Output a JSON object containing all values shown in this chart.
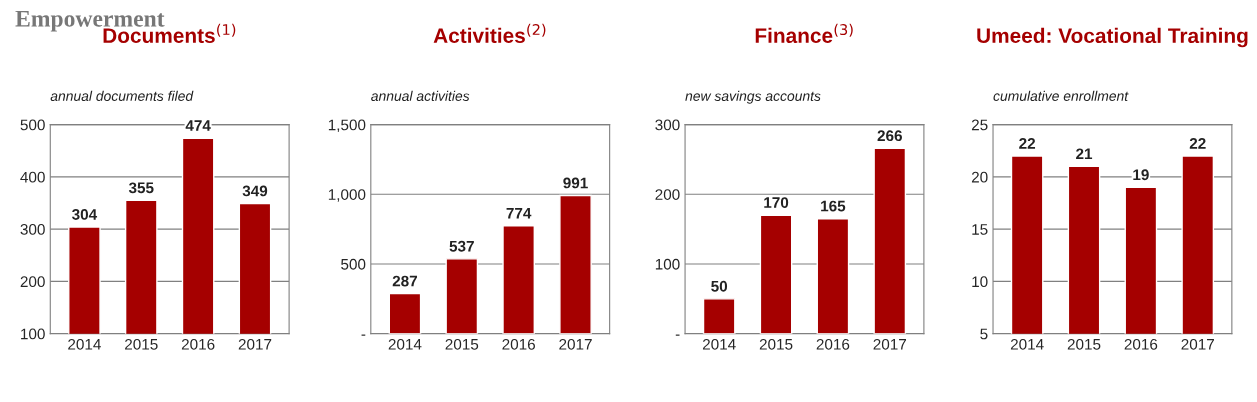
{
  "chart_data": [
    {
      "type": "bar",
      "title": "Documents$^{(1)}$",
      "subtitle": "annual documents filed",
      "annotations": [
        "Empowerment"
      ],
      "categories": [
        "2014",
        "2015",
        "2016",
        "2017"
      ],
      "values": [
        304,
        355,
        474,
        349
      ],
      "color": "#a50000",
      "ylim": [
        100,
        500
      ],
      "yticks": [
        100,
        200,
        300,
        400,
        500
      ],
      "grid": "y",
      "data_labels": true
    },
    {
      "type": "bar",
      "title": "Activities$^{(2)}$",
      "subtitle": "annual activities",
      "categories": [
        "2014",
        "2015",
        "2016",
        "2017"
      ],
      "values": [
        287,
        537,
        774,
        991
      ],
      "color": "#a50000",
      "ylim": [
        0,
        1500
      ],
      "yticks": [
        {
          "value": 0,
          "label": "-"
        },
        500,
        {
          "value": 1000,
          "label": "1,000"
        },
        {
          "value": 1500,
          "label": "1,500"
        }
      ],
      "grid": "y",
      "data_labels": true
    },
    {
      "type": "bar",
      "title": "Finance$^{(3)}$",
      "subtitle": "new savings accounts",
      "categories": [
        "2014",
        "2015",
        "2016",
        "2017"
      ],
      "values": [
        50,
        170,
        165,
        266
      ],
      "color": "#a50000",
      "ylim": [
        0,
        300
      ],
      "yticks": [
        {
          "value": 0,
          "label": "-"
        },
        100,
        200,
        300
      ],
      "grid": "y",
      "data_labels": true
    },
    {
      "type": "bar",
      "title": "Umeed: Vocational Training",
      "subtitle": "cumulative enrollment",
      "categories": [
        "2014",
        "2015",
        "2016",
        "2017"
      ],
      "values": [
        22,
        21,
        19,
        22
      ],
      "color": "#a50000",
      "ylim": [
        5,
        25
      ],
      "yticks": [
        5,
        10,
        15,
        20,
        25
      ],
      "grid": "y",
      "data_labels": true
    }
  ]
}
